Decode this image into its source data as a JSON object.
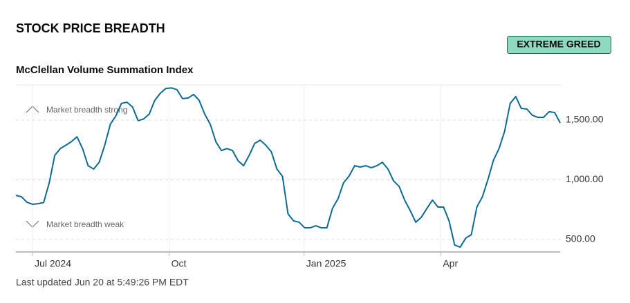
{
  "chart_data": {
    "type": "line",
    "title": "STOCK PRICE BREADTH",
    "rating": "EXTREME GREED",
    "subtitle": "McClellan Volume Summation Index",
    "annotations": [
      "Market breadth strong",
      "Market breadth weak"
    ],
    "footer": "Last updated Jun 20 at 5:49:26 PM EDT",
    "series": [
      {
        "name": "McClellan Volume Summation Index",
        "color": "#0c6a91",
        "values": [
          870,
          858,
          812,
          795,
          800,
          810,
          975,
          1205,
          1262,
          1290,
          1320,
          1360,
          1262,
          1118,
          1090,
          1147,
          1290,
          1465,
          1535,
          1640,
          1650,
          1610,
          1495,
          1510,
          1550,
          1665,
          1725,
          1765,
          1770,
          1755,
          1680,
          1685,
          1715,
          1665,
          1550,
          1465,
          1320,
          1245,
          1262,
          1245,
          1160,
          1118,
          1205,
          1305,
          1332,
          1290,
          1234,
          1090,
          1030,
          714,
          656,
          645,
          598,
          598,
          615,
          598,
          598,
          760,
          841,
          975,
          1032,
          1118,
          1107,
          1118,
          1101,
          1118,
          1147,
          1090,
          991,
          945,
          830,
          742,
          645,
          686,
          760,
          830,
          772,
          772,
          656,
          454,
          436,
          512,
          540,
          772,
          858,
          1003,
          1165,
          1262,
          1407,
          1640,
          1697,
          1598,
          1593,
          1540,
          1523,
          1523,
          1570,
          1564,
          1477
        ]
      }
    ],
    "xlim": [
      0,
      98
    ],
    "xticks": [
      {
        "value": 3,
        "label": "Jul 2024"
      },
      {
        "value": 27.6,
        "label": "Oct"
      },
      {
        "value": 51.9,
        "label": "Jan 2025"
      },
      {
        "value": 76.5,
        "label": "Apr"
      }
    ],
    "ylim": [
      396,
      1795
    ],
    "yticks": [
      {
        "value": 500,
        "label": "500.00"
      },
      {
        "value": 1000,
        "label": "1,000.00"
      },
      {
        "value": 1500,
        "label": "1,500.00"
      }
    ],
    "grid": true
  }
}
